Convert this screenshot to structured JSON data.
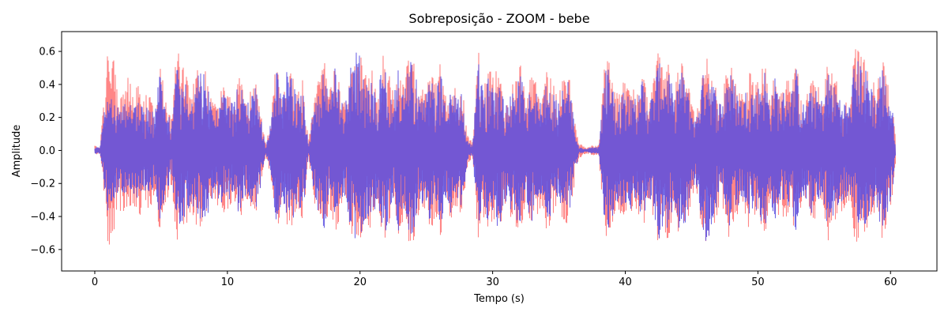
{
  "chart_data": {
    "type": "line",
    "title": "Sobreposição - ZOOM - bebe",
    "xlabel": "Tempo (s)",
    "ylabel": "Amplitude",
    "xlim": [
      -2.5,
      63.5
    ],
    "ylim": [
      -0.73,
      0.72
    ],
    "xticks": [
      0,
      10,
      20,
      30,
      40,
      50,
      60
    ],
    "yticks": [
      -0.6,
      -0.4,
      -0.2,
      0.0,
      0.2,
      0.4,
      0.6
    ],
    "xtick_labels": [
      "0",
      "10",
      "20",
      "30",
      "40",
      "50",
      "60"
    ],
    "ytick_labels": [
      "−0.6",
      "−0.4",
      "−0.2",
      "0.0",
      "0.2",
      "0.4",
      "0.6"
    ],
    "grid": false,
    "legend": "none",
    "duration": 60.4,
    "series": [
      {
        "color": "#ff7f7f",
        "envelope_t": [
          0,
          0.4,
          0.8,
          1.0,
          1.2,
          1.5,
          1.8,
          2.1,
          2.5,
          2.9,
          3.3,
          3.7,
          4.1,
          4.5,
          4.9,
          5.3,
          5.8,
          6.2,
          6.5,
          6.9,
          7.3,
          7.7,
          8.1,
          8.5,
          8.9,
          9.3,
          9.7,
          10.1,
          10.5,
          10.9,
          11.3,
          11.7,
          12.1,
          12.5,
          12.9,
          13.3,
          13.7,
          14.1,
          14.5,
          14.9,
          15.3,
          15.7,
          16.1,
          16.5,
          16.9,
          17.3,
          17.7,
          18.1,
          18.5,
          18.9,
          19.3,
          19.7,
          20.1,
          20.5,
          20.9,
          21.3,
          21.7,
          22.1,
          22.5,
          22.9,
          23.3,
          23.7,
          24.1,
          24.5,
          24.9,
          25.3,
          25.7,
          26.1,
          26.5,
          26.9,
          27.3,
          27.7,
          28.1,
          28.5,
          28.9,
          29.3,
          29.7,
          30.1,
          30.5,
          30.9,
          31.3,
          31.7,
          32.1,
          32.5,
          32.9,
          33.3,
          33.7,
          34.1,
          34.5,
          34.9,
          35.3,
          35.7,
          36.1,
          36.5,
          37.0,
          37.5,
          38.0,
          38.5,
          38.9,
          39.3,
          39.7,
          40.1,
          40.5,
          40.9,
          41.3,
          41.7,
          42.1,
          42.5,
          42.9,
          43.3,
          43.7,
          44.1,
          44.5,
          44.9,
          45.3,
          45.7,
          46.1,
          46.5,
          46.9,
          47.3,
          47.7,
          48.1,
          48.5,
          48.9,
          49.3,
          49.7,
          50.1,
          50.5,
          50.9,
          51.3,
          51.7,
          52.1,
          52.5,
          52.9,
          53.3,
          53.7,
          54.1,
          54.5,
          54.9,
          55.3,
          55.7,
          56.1,
          56.5,
          56.9,
          57.3,
          57.7,
          58.1,
          58.5,
          58.9,
          59.3,
          59.7,
          60.1,
          60.4
        ],
        "envelope_max": [
          0.03,
          0.02,
          0.45,
          0.64,
          0.62,
          0.6,
          0.3,
          0.4,
          0.45,
          0.35,
          0.5,
          0.3,
          0.4,
          0.25,
          0.55,
          0.35,
          0.2,
          0.65,
          0.55,
          0.45,
          0.35,
          0.5,
          0.55,
          0.45,
          0.3,
          0.35,
          0.4,
          0.35,
          0.3,
          0.5,
          0.3,
          0.35,
          0.45,
          0.25,
          0.03,
          0.2,
          0.58,
          0.3,
          0.45,
          0.5,
          0.35,
          0.45,
          0.05,
          0.3,
          0.45,
          0.55,
          0.35,
          0.52,
          0.4,
          0.3,
          0.5,
          0.6,
          0.62,
          0.45,
          0.5,
          0.3,
          0.6,
          0.5,
          0.35,
          0.55,
          0.4,
          0.6,
          0.55,
          0.4,
          0.35,
          0.5,
          0.4,
          0.55,
          0.3,
          0.45,
          0.35,
          0.4,
          0.1,
          0.05,
          0.62,
          0.4,
          0.5,
          0.45,
          0.55,
          0.35,
          0.4,
          0.45,
          0.55,
          0.3,
          0.5,
          0.4,
          0.35,
          0.5,
          0.45,
          0.3,
          0.45,
          0.5,
          0.25,
          0.05,
          0.02,
          0.03,
          0.03,
          0.64,
          0.5,
          0.35,
          0.4,
          0.45,
          0.4,
          0.35,
          0.5,
          0.35,
          0.4,
          0.63,
          0.5,
          0.55,
          0.35,
          0.55,
          0.5,
          0.35,
          0.2,
          0.45,
          0.6,
          0.5,
          0.4,
          0.3,
          0.55,
          0.5,
          0.4,
          0.35,
          0.5,
          0.4,
          0.45,
          0.55,
          0.3,
          0.5,
          0.35,
          0.45,
          0.4,
          0.55,
          0.3,
          0.35,
          0.45,
          0.4,
          0.35,
          0.55,
          0.45,
          0.4,
          0.35,
          0.3,
          0.62,
          0.6,
          0.55,
          0.5,
          0.35,
          0.6,
          0.45,
          0.3,
          0.08,
          0.01
        ],
        "envelope_min": [
          -0.03,
          -0.02,
          -0.35,
          -0.58,
          -0.6,
          -0.5,
          -0.3,
          -0.45,
          -0.4,
          -0.35,
          -0.45,
          -0.3,
          -0.4,
          -0.25,
          -0.5,
          -0.35,
          -0.2,
          -0.7,
          -0.5,
          -0.45,
          -0.35,
          -0.5,
          -0.45,
          -0.4,
          -0.3,
          -0.35,
          -0.4,
          -0.35,
          -0.3,
          -0.45,
          -0.3,
          -0.35,
          -0.4,
          -0.25,
          -0.03,
          -0.2,
          -0.55,
          -0.3,
          -0.45,
          -0.5,
          -0.35,
          -0.45,
          -0.05,
          -0.3,
          -0.45,
          -0.5,
          -0.35,
          -0.55,
          -0.4,
          -0.3,
          -0.5,
          -0.58,
          -0.55,
          -0.45,
          -0.5,
          -0.3,
          -0.6,
          -0.5,
          -0.35,
          -0.55,
          -0.4,
          -0.58,
          -0.55,
          -0.4,
          -0.35,
          -0.5,
          -0.4,
          -0.55,
          -0.3,
          -0.45,
          -0.35,
          -0.4,
          -0.1,
          -0.05,
          -0.55,
          -0.4,
          -0.5,
          -0.45,
          -0.55,
          -0.35,
          -0.4,
          -0.45,
          -0.55,
          -0.3,
          -0.5,
          -0.4,
          -0.35,
          -0.5,
          -0.45,
          -0.3,
          -0.45,
          -0.5,
          -0.25,
          -0.05,
          -0.02,
          -0.03,
          -0.03,
          -0.55,
          -0.5,
          -0.35,
          -0.4,
          -0.45,
          -0.4,
          -0.35,
          -0.5,
          -0.35,
          -0.4,
          -0.66,
          -0.5,
          -0.55,
          -0.35,
          -0.55,
          -0.5,
          -0.35,
          -0.2,
          -0.45,
          -0.6,
          -0.5,
          -0.4,
          -0.3,
          -0.55,
          -0.5,
          -0.4,
          -0.35,
          -0.5,
          -0.4,
          -0.45,
          -0.55,
          -0.3,
          -0.5,
          -0.35,
          -0.45,
          -0.4,
          -0.55,
          -0.3,
          -0.35,
          -0.45,
          -0.4,
          -0.35,
          -0.55,
          -0.45,
          -0.4,
          -0.35,
          -0.3,
          -0.58,
          -0.55,
          -0.5,
          -0.45,
          -0.35,
          -0.55,
          -0.45,
          -0.3,
          -0.08,
          -0.01
        ]
      },
      {
        "color": "#5a4fe0",
        "envelope_t": [
          0,
          0.4,
          0.8,
          1.0,
          1.2,
          1.5,
          1.8,
          2.1,
          2.5,
          2.9,
          3.3,
          3.7,
          4.1,
          4.5,
          4.9,
          5.3,
          5.8,
          6.2,
          6.5,
          6.9,
          7.3,
          7.7,
          8.1,
          8.5,
          8.9,
          9.3,
          9.7,
          10.1,
          10.5,
          10.9,
          11.3,
          11.7,
          12.1,
          12.5,
          12.9,
          13.3,
          13.7,
          14.1,
          14.5,
          14.9,
          15.3,
          15.7,
          16.1,
          16.5,
          16.9,
          17.3,
          17.7,
          18.1,
          18.5,
          18.9,
          19.3,
          19.7,
          20.1,
          20.5,
          20.9,
          21.3,
          21.7,
          22.1,
          22.5,
          22.9,
          23.3,
          23.7,
          24.1,
          24.5,
          24.9,
          25.3,
          25.7,
          26.1,
          26.5,
          26.9,
          27.3,
          27.7,
          28.1,
          28.5,
          28.9,
          29.3,
          29.7,
          30.1,
          30.5,
          30.9,
          31.3,
          31.7,
          32.1,
          32.5,
          32.9,
          33.3,
          33.7,
          34.1,
          34.5,
          34.9,
          35.3,
          35.7,
          36.1,
          36.5,
          37.0,
          37.5,
          38.0,
          38.5,
          38.9,
          39.3,
          39.7,
          40.1,
          40.5,
          40.9,
          41.3,
          41.7,
          42.1,
          42.5,
          42.9,
          43.3,
          43.7,
          44.1,
          44.5,
          44.9,
          45.3,
          45.7,
          46.1,
          46.5,
          46.9,
          47.3,
          47.7,
          48.1,
          48.5,
          48.9,
          49.3,
          49.7,
          50.1,
          50.5,
          50.9,
          51.3,
          51.7,
          52.1,
          52.5,
          52.9,
          53.3,
          53.7,
          54.1,
          54.5,
          54.9,
          55.3,
          55.7,
          56.1,
          56.5,
          56.9,
          57.3,
          57.7,
          58.1,
          58.5,
          58.9,
          59.3,
          59.7,
          60.1,
          60.4
        ],
        "envelope_max": [
          0.02,
          0.02,
          0.3,
          0.4,
          0.35,
          0.3,
          0.25,
          0.3,
          0.3,
          0.28,
          0.3,
          0.25,
          0.3,
          0.2,
          0.6,
          0.3,
          0.15,
          0.55,
          0.45,
          0.4,
          0.3,
          0.45,
          0.5,
          0.4,
          0.28,
          0.3,
          0.35,
          0.3,
          0.28,
          0.45,
          0.28,
          0.3,
          0.42,
          0.22,
          0.02,
          0.18,
          0.55,
          0.28,
          0.55,
          0.45,
          0.3,
          0.42,
          0.03,
          0.28,
          0.4,
          0.5,
          0.3,
          0.5,
          0.35,
          0.28,
          0.55,
          0.6,
          0.6,
          0.4,
          0.45,
          0.28,
          0.58,
          0.45,
          0.3,
          0.5,
          0.35,
          0.58,
          0.5,
          0.35,
          0.3,
          0.45,
          0.35,
          0.5,
          0.28,
          0.4,
          0.3,
          0.35,
          0.06,
          0.03,
          0.55,
          0.35,
          0.45,
          0.4,
          0.5,
          0.3,
          0.35,
          0.4,
          0.5,
          0.28,
          0.45,
          0.35,
          0.3,
          0.45,
          0.4,
          0.28,
          0.4,
          0.45,
          0.2,
          0.02,
          0.01,
          0.02,
          0.02,
          0.55,
          0.45,
          0.3,
          0.35,
          0.4,
          0.35,
          0.3,
          0.45,
          0.3,
          0.35,
          0.55,
          0.45,
          0.5,
          0.3,
          0.5,
          0.45,
          0.3,
          0.18,
          0.4,
          0.55,
          0.45,
          0.35,
          0.28,
          0.5,
          0.45,
          0.35,
          0.3,
          0.45,
          0.35,
          0.4,
          0.5,
          0.28,
          0.45,
          0.3,
          0.4,
          0.35,
          0.5,
          0.28,
          0.3,
          0.4,
          0.35,
          0.3,
          0.5,
          0.4,
          0.35,
          0.3,
          0.28,
          0.55,
          0.55,
          0.5,
          0.45,
          0.3,
          0.55,
          0.4,
          0.28,
          0.05,
          0.01
        ],
        "envelope_min": [
          -0.02,
          -0.02,
          -0.3,
          -0.4,
          -0.35,
          -0.3,
          -0.25,
          -0.3,
          -0.3,
          -0.28,
          -0.3,
          -0.25,
          -0.3,
          -0.2,
          -0.45,
          -0.3,
          -0.15,
          -0.6,
          -0.45,
          -0.4,
          -0.3,
          -0.45,
          -0.45,
          -0.4,
          -0.28,
          -0.3,
          -0.35,
          -0.3,
          -0.28,
          -0.42,
          -0.28,
          -0.3,
          -0.38,
          -0.22,
          -0.02,
          -0.18,
          -0.5,
          -0.28,
          -0.42,
          -0.45,
          -0.3,
          -0.42,
          -0.03,
          -0.28,
          -0.4,
          -0.48,
          -0.3,
          -0.5,
          -0.35,
          -0.28,
          -0.48,
          -0.55,
          -0.52,
          -0.4,
          -0.45,
          -0.28,
          -0.55,
          -0.45,
          -0.3,
          -0.5,
          -0.35,
          -0.55,
          -0.5,
          -0.35,
          -0.3,
          -0.45,
          -0.35,
          -0.5,
          -0.28,
          -0.4,
          -0.3,
          -0.35,
          -0.06,
          -0.03,
          -0.5,
          -0.35,
          -0.45,
          -0.4,
          -0.5,
          -0.3,
          -0.35,
          -0.4,
          -0.5,
          -0.28,
          -0.45,
          -0.35,
          -0.3,
          -0.45,
          -0.4,
          -0.28,
          -0.4,
          -0.45,
          -0.2,
          -0.02,
          -0.01,
          -0.02,
          -0.02,
          -0.5,
          -0.45,
          -0.3,
          -0.35,
          -0.4,
          -0.35,
          -0.3,
          -0.45,
          -0.3,
          -0.35,
          -0.58,
          -0.45,
          -0.5,
          -0.3,
          -0.5,
          -0.45,
          -0.3,
          -0.18,
          -0.4,
          -0.62,
          -0.45,
          -0.35,
          -0.28,
          -0.5,
          -0.45,
          -0.35,
          -0.3,
          -0.45,
          -0.35,
          -0.4,
          -0.5,
          -0.28,
          -0.45,
          -0.3,
          -0.4,
          -0.35,
          -0.5,
          -0.28,
          -0.3,
          -0.4,
          -0.35,
          -0.3,
          -0.5,
          -0.4,
          -0.35,
          -0.3,
          -0.28,
          -0.5,
          -0.5,
          -0.45,
          -0.4,
          -0.3,
          -0.5,
          -0.4,
          -0.28,
          -0.05,
          -0.01
        ]
      }
    ]
  }
}
